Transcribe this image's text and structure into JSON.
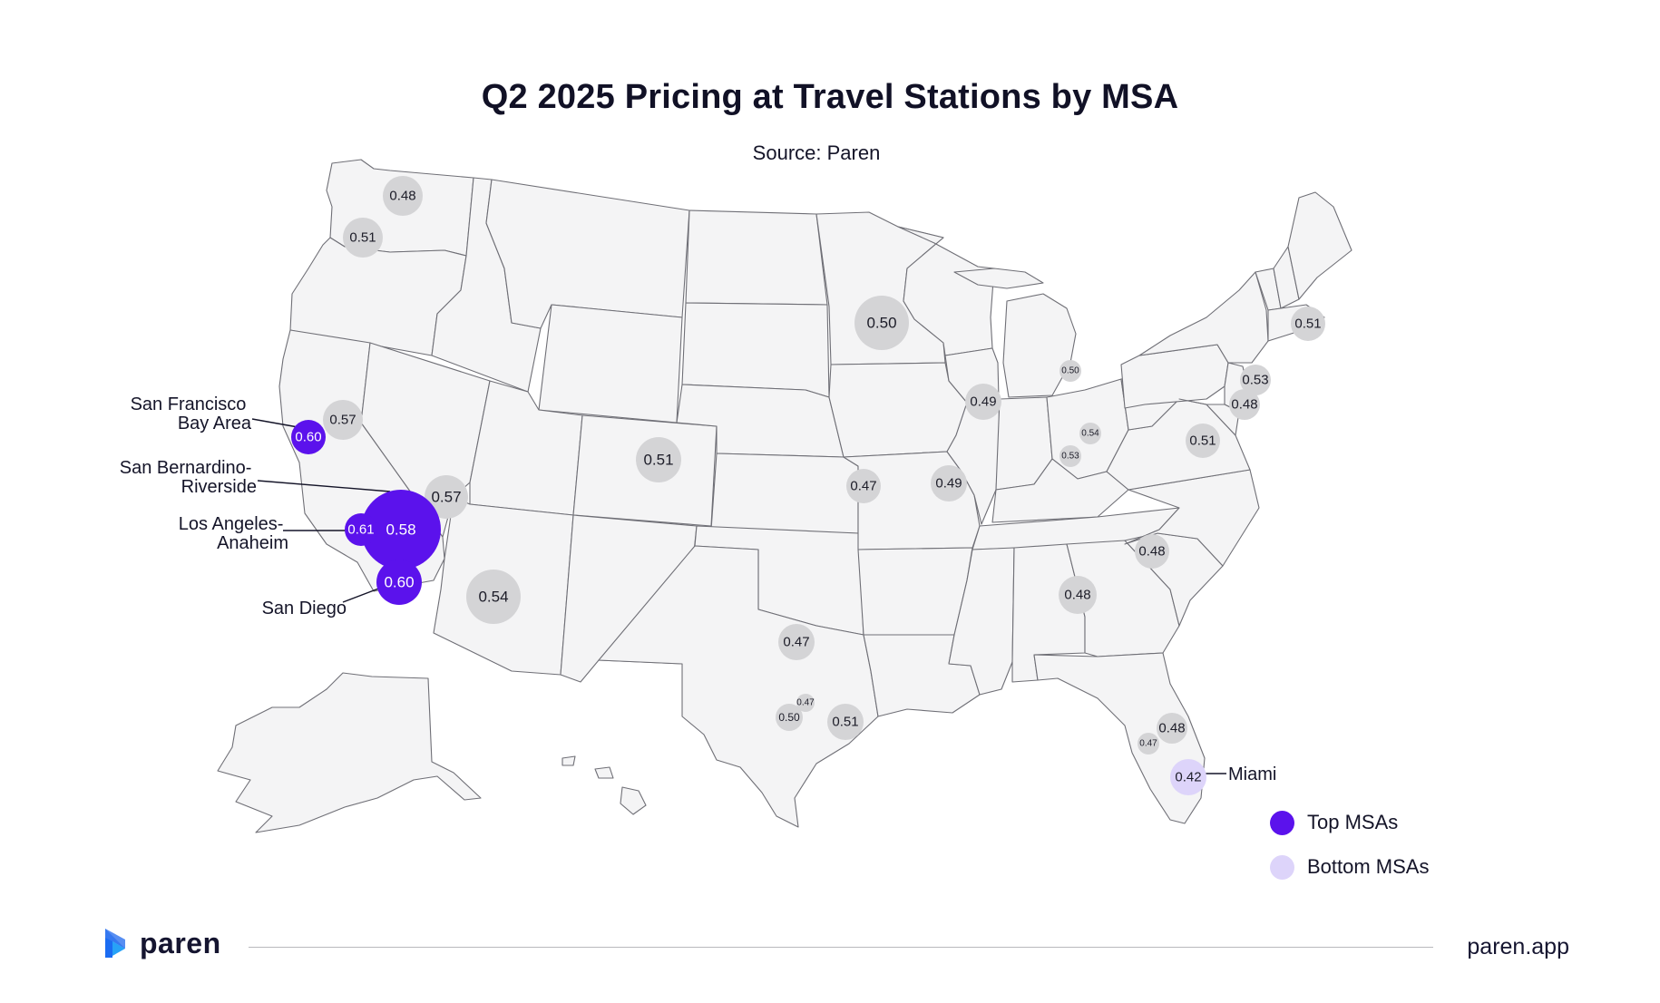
{
  "header": {
    "title": "Q2 2025 Pricing at Travel Stations by MSA",
    "subtitle": "Source: Paren"
  },
  "colors": {
    "top": "#5b12ec",
    "bottom": "#ddd4fa",
    "neutral": "#d4d4d6",
    "land": "#f4f4f5",
    "border": "#6f6f76"
  },
  "chart_data": {
    "type": "bubble-map",
    "region": "United States",
    "metric": "Pricing at travel stations",
    "points": [
      {
        "value": "0.48",
        "category": "neutral"
      },
      {
        "value": "0.51",
        "category": "neutral"
      },
      {
        "value": "0.57",
        "category": "neutral"
      },
      {
        "value": "0.60",
        "category": "top",
        "msa": "San Francisco Bay Area"
      },
      {
        "value": "0.57",
        "category": "neutral"
      },
      {
        "value": "0.58",
        "category": "top",
        "msa": "San Bernardino-Riverside"
      },
      {
        "value": "0.61",
        "category": "top",
        "msa": "Los Angeles-Anaheim"
      },
      {
        "value": "0.60",
        "category": "top",
        "msa": "San Diego"
      },
      {
        "value": "0.54",
        "category": "neutral"
      },
      {
        "value": "0.51",
        "category": "neutral"
      },
      {
        "value": "0.50",
        "category": "neutral"
      },
      {
        "value": "0.47",
        "category": "neutral"
      },
      {
        "value": "0.49",
        "category": "neutral"
      },
      {
        "value": "0.49",
        "category": "neutral"
      },
      {
        "value": "0.50",
        "category": "neutral"
      },
      {
        "value": "0.54",
        "category": "neutral"
      },
      {
        "value": "0.53",
        "category": "neutral"
      },
      {
        "value": "0.51",
        "category": "neutral"
      },
      {
        "value": "0.51",
        "category": "neutral"
      },
      {
        "value": "0.53",
        "category": "neutral"
      },
      {
        "value": "0.48",
        "category": "neutral"
      },
      {
        "value": "0.48",
        "category": "neutral"
      },
      {
        "value": "0.48",
        "category": "neutral"
      },
      {
        "value": "0.47",
        "category": "neutral"
      },
      {
        "value": "0.47",
        "category": "neutral"
      },
      {
        "value": "0.50",
        "category": "neutral"
      },
      {
        "value": "0.51",
        "category": "neutral"
      },
      {
        "value": "0.48",
        "category": "neutral"
      },
      {
        "value": "0.47",
        "category": "neutral"
      },
      {
        "value": "0.42",
        "category": "bottom",
        "msa": "Miami"
      }
    ],
    "callouts": {
      "sf": [
        "San Francisco",
        "Bay Area"
      ],
      "sb": [
        "San Bernardino-",
        "Riverside"
      ],
      "la": [
        "Los Angeles-",
        "Anaheim"
      ],
      "sd": [
        "San Diego"
      ],
      "mia": [
        "Miami"
      ]
    },
    "legend": [
      {
        "label": "Top MSAs",
        "color": "#5b12ec"
      },
      {
        "label": "Bottom MSAs",
        "color": "#ddd4fa"
      }
    ],
    "legend_position": "bottom-right"
  },
  "footer": {
    "brand": "paren",
    "url": "paren.app"
  }
}
